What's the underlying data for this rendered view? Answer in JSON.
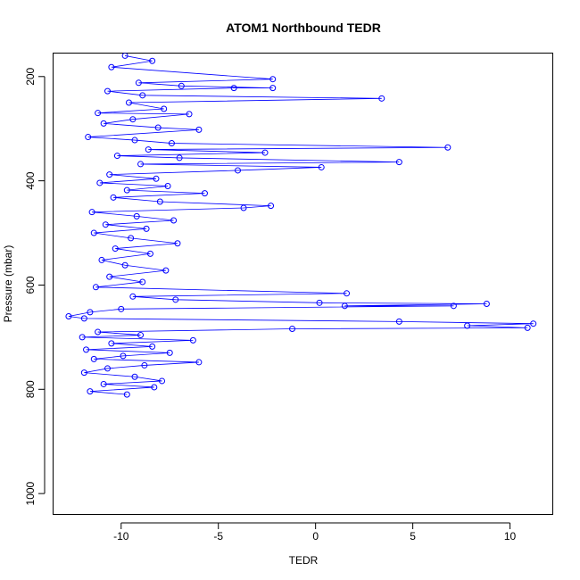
{
  "chart_data": {
    "type": "line",
    "title": "ATOM1 Northbound TEDR",
    "xlabel": "TEDR",
    "ylabel": "Pressure (mbar)",
    "xlim": [
      -13.5,
      12.2
    ],
    "ylim": [
      1040,
      155
    ],
    "y_reversed": true,
    "x_ticks": [
      -10,
      -5,
      0,
      5,
      10
    ],
    "x_tick_labels": [
      "-10",
      "-5",
      "0",
      "5",
      "10"
    ],
    "y_ticks": [
      200,
      400,
      600,
      800,
      1000
    ],
    "y_tick_labels": [
      "200",
      "400",
      "600",
      "800",
      "1000"
    ],
    "grid": false,
    "legend": "none",
    "series": [
      {
        "color": "#0000ff",
        "marker": "open-circle",
        "points": [
          [
            -9.8,
            160
          ],
          [
            -8.4,
            170
          ],
          [
            -10.5,
            182
          ],
          [
            -2.2,
            205
          ],
          [
            -9.1,
            212
          ],
          [
            -6.9,
            218
          ],
          [
            -2.2,
            222
          ],
          [
            -4.2,
            222
          ],
          [
            -10.7,
            228
          ],
          [
            -8.9,
            236
          ],
          [
            3.4,
            242
          ],
          [
            -9.6,
            250
          ],
          [
            -7.8,
            262
          ],
          [
            -11.2,
            270
          ],
          [
            -6.5,
            272
          ],
          [
            -9.4,
            282
          ],
          [
            -10.9,
            290
          ],
          [
            -8.1,
            298
          ],
          [
            -6.0,
            302
          ],
          [
            -11.7,
            316
          ],
          [
            -9.3,
            322
          ],
          [
            -7.4,
            328
          ],
          [
            6.8,
            336
          ],
          [
            -8.6,
            340
          ],
          [
            -2.6,
            346
          ],
          [
            -10.2,
            352
          ],
          [
            -7.0,
            356
          ],
          [
            4.3,
            364
          ],
          [
            -9.0,
            368
          ],
          [
            0.3,
            374
          ],
          [
            -4.0,
            380
          ],
          [
            -10.6,
            388
          ],
          [
            -8.2,
            396
          ],
          [
            -11.1,
            404
          ],
          [
            -7.6,
            410
          ],
          [
            -9.7,
            418
          ],
          [
            -5.7,
            424
          ],
          [
            -10.4,
            432
          ],
          [
            -8.0,
            440
          ],
          [
            -2.3,
            448
          ],
          [
            -3.7,
            452
          ],
          [
            -11.5,
            460
          ],
          [
            -9.2,
            468
          ],
          [
            -7.3,
            476
          ],
          [
            -10.8,
            484
          ],
          [
            -8.7,
            492
          ],
          [
            -11.4,
            500
          ],
          [
            -9.5,
            510
          ],
          [
            -7.1,
            520
          ],
          [
            -10.3,
            530
          ],
          [
            -8.5,
            540
          ],
          [
            -11.0,
            552
          ],
          [
            -9.8,
            562
          ],
          [
            -7.7,
            572
          ],
          [
            -10.6,
            584
          ],
          [
            -8.9,
            594
          ],
          [
            -11.3,
            604
          ],
          [
            1.6,
            616
          ],
          [
            -9.4,
            622
          ],
          [
            -7.2,
            628
          ],
          [
            0.2,
            634
          ],
          [
            8.8,
            636
          ],
          [
            1.5,
            640
          ],
          [
            7.1,
            640
          ],
          [
            -10.0,
            646
          ],
          [
            -11.6,
            652
          ],
          [
            -12.7,
            660
          ],
          [
            -11.9,
            664
          ],
          [
            4.3,
            670
          ],
          [
            11.2,
            674
          ],
          [
            7.8,
            678
          ],
          [
            10.9,
            682
          ],
          [
            -1.2,
            684
          ],
          [
            -11.2,
            690
          ],
          [
            -9.0,
            696
          ],
          [
            -12.0,
            700
          ],
          [
            -6.3,
            706
          ],
          [
            -10.5,
            712
          ],
          [
            -8.4,
            718
          ],
          [
            -11.8,
            724
          ],
          [
            -7.5,
            730
          ],
          [
            -9.9,
            736
          ],
          [
            -11.4,
            742
          ],
          [
            -6.0,
            748
          ],
          [
            -8.8,
            754
          ],
          [
            -10.7,
            760
          ],
          [
            -11.9,
            768
          ],
          [
            -9.3,
            776
          ],
          [
            -7.9,
            784
          ],
          [
            -10.9,
            790
          ],
          [
            -8.3,
            796
          ],
          [
            -11.6,
            804
          ],
          [
            -9.7,
            810
          ]
        ]
      }
    ]
  }
}
